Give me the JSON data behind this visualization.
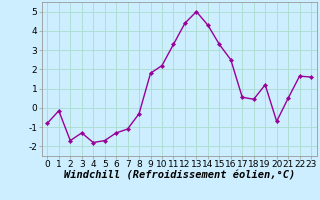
{
  "x": [
    0,
    1,
    2,
    3,
    4,
    5,
    6,
    7,
    8,
    9,
    10,
    11,
    12,
    13,
    14,
    15,
    16,
    17,
    18,
    19,
    20,
    21,
    22,
    23
  ],
  "y": [
    -0.8,
    -0.15,
    -1.7,
    -1.3,
    -1.8,
    -1.7,
    -1.3,
    -1.1,
    -0.3,
    1.8,
    2.2,
    3.3,
    4.4,
    5.0,
    4.3,
    3.3,
    2.5,
    0.55,
    0.45,
    1.2,
    -0.7,
    0.5,
    1.65,
    1.6
  ],
  "line_color": "#990099",
  "marker": "D",
  "marker_size": 2.2,
  "line_width": 1.0,
  "bg_color": "#cceeff",
  "grid_color": "#aaddcc",
  "xlabel": "Windchill (Refroidissement éolien,°C)",
  "xlabel_fontsize": 7.5,
  "tick_fontsize": 6.5,
  "xlim": [
    -0.5,
    23.5
  ],
  "ylim": [
    -2.5,
    5.5
  ],
  "yticks": [
    -2,
    -1,
    0,
    1,
    2,
    3,
    4,
    5
  ],
  "xticks": [
    0,
    1,
    2,
    3,
    4,
    5,
    6,
    7,
    8,
    9,
    10,
    11,
    12,
    13,
    14,
    15,
    16,
    17,
    18,
    19,
    20,
    21,
    22,
    23
  ],
  "spine_color": "#999999"
}
